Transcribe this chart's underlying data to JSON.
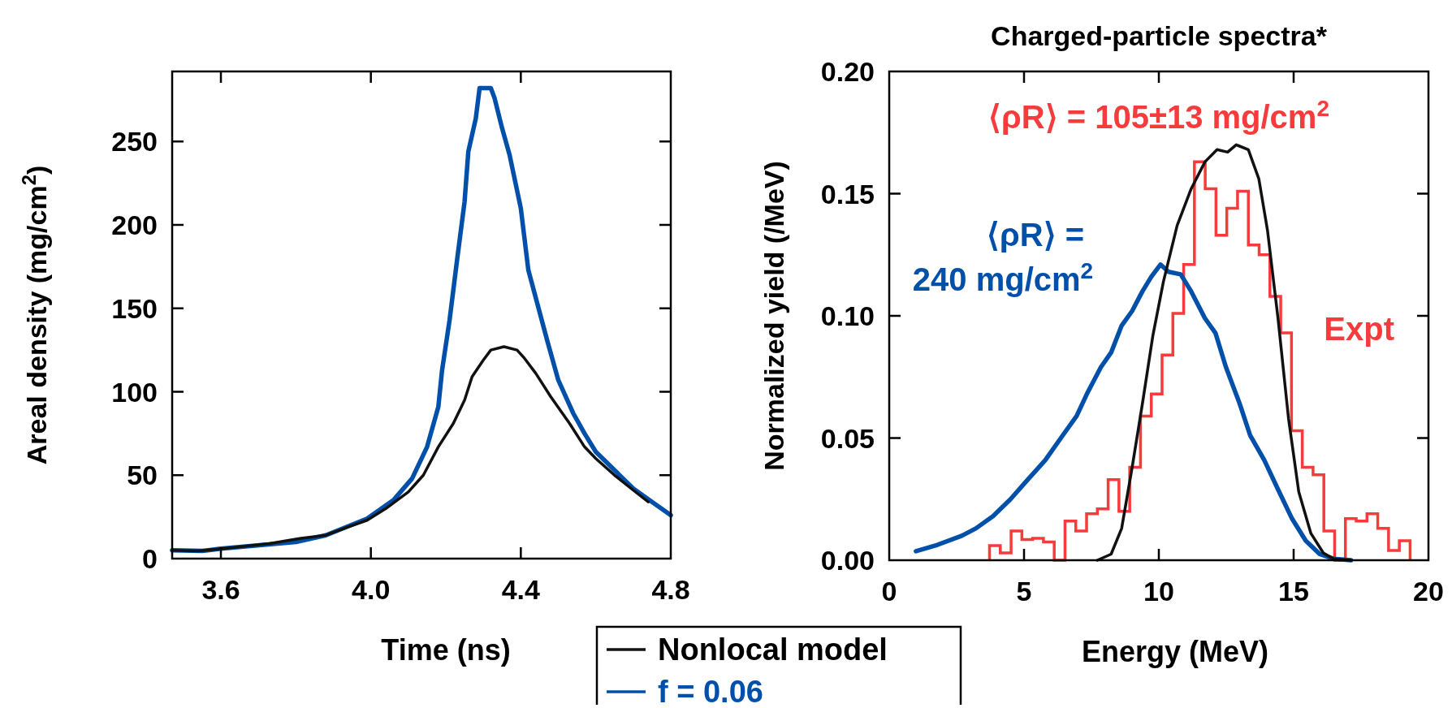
{
  "chart_data": [
    {
      "type": "line",
      "xlabel": "Time (ns)",
      "ylabel": "Areal density (mg/cm$^{2}$)",
      "xlim": [
        3.47,
        4.8
      ],
      "ylim": [
        0,
        292
      ],
      "xticks": [
        3.6,
        {
          "value": 4,
          "label": "4.0"
        },
        4.4,
        4.8
      ],
      "yticks": [
        0,
        50,
        100,
        150,
        200,
        250
      ],
      "legend": "bottom",
      "series": [
        {
          "name": "Nonlocal model",
          "color": "#111111",
          "x": [
            3.47,
            3.54,
            3.62,
            3.73,
            3.81,
            3.88,
            3.94,
            3.99,
            4.04,
            4.1,
            4.14,
            4.18,
            4.22,
            4.25,
            4.27,
            4.3,
            4.32,
            4.355,
            4.39,
            4.41,
            4.44,
            4.48,
            4.53,
            4.57,
            4.6,
            4.65,
            4.7,
            4.74
          ],
          "values": [
            5,
            4.6,
            6.3,
            9,
            12,
            14,
            19,
            23,
            30,
            40,
            50,
            67,
            81,
            95,
            109,
            119,
            125,
            127,
            125,
            120,
            111,
            97,
            81,
            67,
            60,
            50,
            41,
            34
          ]
        },
        {
          "name": "f = 0.06",
          "color": "#0050aa",
          "x": [
            3.47,
            3.55,
            3.6,
            3.8,
            3.88,
            3.99,
            4.06,
            4.11,
            4.15,
            4.18,
            4.19,
            4.21,
            4.23,
            4.25,
            4.26,
            4.28,
            4.29,
            4.32,
            4.33,
            4.35,
            4.37,
            4.4,
            4.42,
            4.47,
            4.5,
            4.54,
            4.57,
            4.6,
            4.7,
            4.75,
            4.8
          ],
          "values": [
            5,
            4.6,
            6,
            10,
            14,
            24,
            35,
            48,
            67,
            91,
            113,
            143,
            179,
            214,
            244,
            264,
            282,
            282,
            276,
            258,
            242,
            210,
            173,
            131,
            107,
            87,
            75,
            64,
            42,
            34,
            26
          ]
        }
      ]
    },
    {
      "type": "line",
      "title": "Charged-particle spectra*",
      "xlabel": "Energy (MeV)",
      "ylabel": "Normalized yield (/MeV)",
      "xlim": [
        0,
        20
      ],
      "ylim": [
        0,
        0.2
      ],
      "xticks": [
        0,
        5,
        10,
        15,
        20
      ],
      "yticks": [
        {
          "value": 0,
          "label": "0.00"
        },
        {
          "value": 0.05,
          "label": "0.05"
        },
        {
          "value": 0.1,
          "label": "0.10"
        },
        {
          "value": 0.15,
          "label": "0.15"
        },
        {
          "value": 0.2,
          "label": "0.20"
        }
      ],
      "annotations": [
        "⟨ρR⟩ = 105±13 mg/cm$^{2}$",
        "⟨ρR⟩ = 240 mg/cm$^{2}$"
      ],
      "series": [
        {
          "color": "#111111",
          "x": [
            7.72,
            8.23,
            8.62,
            9.01,
            9.39,
            9.78,
            10.17,
            10.68,
            11.2,
            11.71,
            12.16,
            12.55,
            12.87,
            13.32,
            13.71,
            14.03,
            14.42,
            14.81,
            15.19,
            15.64,
            16.1,
            16.48,
            17.13
          ],
          "values": [
            0,
            0.0025,
            0.013,
            0.038,
            0.064,
            0.092,
            0.114,
            0.137,
            0.152,
            0.163,
            0.168,
            0.167,
            0.17,
            0.168,
            0.156,
            0.135,
            0.099,
            0.058,
            0.028,
            0.011,
            0.003,
            0.0006,
            0
          ]
        },
        {
          "color": "#0050aa",
          "x": [
            0.99,
            1.79,
            2.69,
            3.21,
            3.85,
            4.5,
            5.14,
            5.79,
            6.43,
            6.95,
            7.33,
            7.85,
            8.23,
            8.62,
            9.01,
            9.39,
            9.72,
            10.06,
            10.36,
            10.81,
            11.2,
            11.71,
            12.1,
            12.49,
            13,
            13.39,
            13.91,
            14.42,
            14.94,
            15.45,
            15.97,
            16.48,
            17.13
          ],
          "values": [
            0.0037,
            0.0063,
            0.01,
            0.013,
            0.018,
            0.025,
            0.033,
            0.041,
            0.051,
            0.059,
            0.068,
            0.079,
            0.085,
            0.096,
            0.102,
            0.11,
            0.116,
            0.121,
            0.118,
            0.117,
            0.11,
            0.099,
            0.093,
            0.079,
            0.064,
            0.051,
            0.041,
            0.029,
            0.017,
            0.008,
            0.0025,
            0.0006,
            0
          ]
        },
        {
          "type": "histogram",
          "name": "Expt",
          "color": "#f53b3b",
          "bins": [
            3.72,
            4.12,
            4.52,
            4.92,
            5.32,
            5.72,
            6.12,
            6.52,
            6.92,
            7.32,
            7.72,
            8.12,
            8.52,
            8.92,
            9.32,
            9.72,
            10.12,
            10.52,
            10.92,
            11.32,
            11.72,
            12.12,
            12.52,
            12.92,
            13.32,
            13.72,
            14.12,
            14.52,
            14.92,
            15.32,
            15.72,
            16.12,
            16.52,
            16.92,
            17.32,
            17.72,
            18.12,
            18.52,
            18.92,
            19.32
          ],
          "values": [
            0.006,
            0.003,
            0.012,
            0.0085,
            0.009,
            0.0075,
            0,
            0.016,
            0.012,
            0.019,
            0.021,
            0.033,
            0.02,
            0.038,
            0.059,
            0.068,
            0.084,
            0.101,
            0.121,
            0.163,
            0.152,
            0.133,
            0.144,
            0.151,
            0.129,
            0.125,
            0.108,
            0.093,
            0.053,
            0.038,
            0.035,
            0.012,
            0,
            0.017,
            0.016,
            0.019,
            0.013,
            0.004,
            0.008
          ]
        }
      ]
    }
  ]
}
